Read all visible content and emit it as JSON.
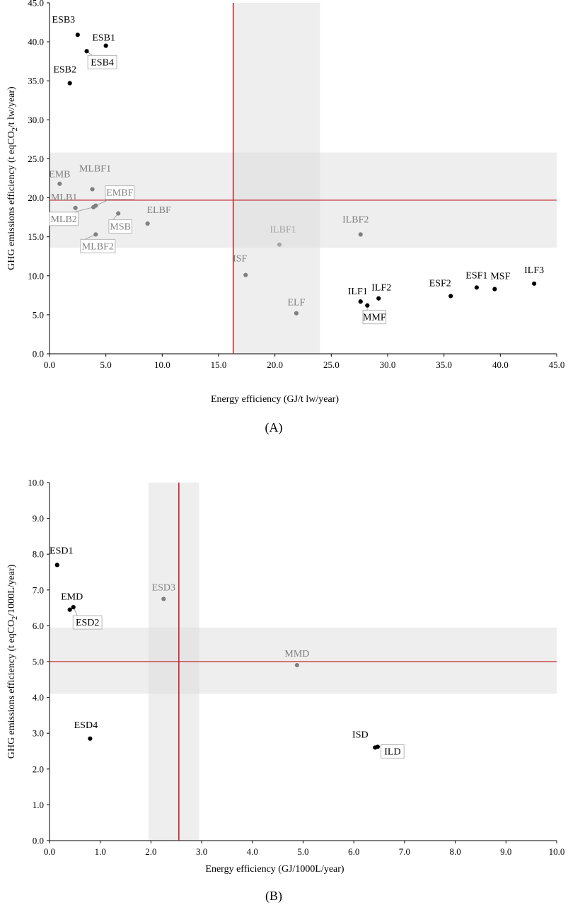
{
  "chart_data": [
    {
      "type": "scatter",
      "panel_label": "(A)",
      "xlabel": "Energy efficiency (GJ/t lw/year)",
      "ylabel_parts": [
        "GHG emissions efficiency (t eqCO",
        "2",
        "/t lw/year)"
      ],
      "xlim": [
        0,
        45
      ],
      "ylim": [
        0,
        45
      ],
      "x_ticks": [
        "0.0",
        "5.0",
        "10.0",
        "15.0",
        "20.0",
        "25.0",
        "30.0",
        "35.0",
        "40.0",
        "45.0"
      ],
      "y_ticks": [
        "0.0",
        "5.0",
        "10.0",
        "15.0",
        "20.0",
        "25.0",
        "30.0",
        "35.0",
        "40.0",
        "45.0"
      ],
      "reference_lines": {
        "x": 16.3,
        "y": 19.7
      },
      "shaded_bands": {
        "x": [
          16.3,
          24.0
        ],
        "y": [
          13.6,
          25.8
        ]
      },
      "points": [
        {
          "label": "ESB3",
          "x": 2.5,
          "y": 40.9,
          "color": "#000000"
        },
        {
          "label": "ESB1",
          "x": 5.0,
          "y": 39.5,
          "color": "#000000"
        },
        {
          "label": "ESB4",
          "x": 3.3,
          "y": 38.8,
          "color": "#000000",
          "boxed": true
        },
        {
          "label": "ESB2",
          "x": 1.8,
          "y": 34.7,
          "color": "#000000"
        },
        {
          "label": "EMB",
          "x": 0.9,
          "y": 21.8,
          "color": "#808080"
        },
        {
          "label": "MLBF1",
          "x": 3.8,
          "y": 21.1,
          "color": "#808080"
        },
        {
          "label": "MLB1",
          "x": 2.3,
          "y": 18.7,
          "color": "#808080"
        },
        {
          "label": "EMBF",
          "x": 4.1,
          "y": 19.0,
          "color": "#808080",
          "boxed": true
        },
        {
          "label": "MLB2",
          "x": 3.9,
          "y": 18.8,
          "color": "#808080",
          "boxed": true
        },
        {
          "label": "MSB",
          "x": 6.1,
          "y": 18.0,
          "color": "#808080",
          "boxed": true
        },
        {
          "label": "MLBF2",
          "x": 4.1,
          "y": 15.3,
          "color": "#808080",
          "boxed": true
        },
        {
          "label": "ELBF",
          "x": 8.7,
          "y": 16.7,
          "color": "#808080"
        },
        {
          "label": "ILBF1",
          "x": 20.4,
          "y": 14.0,
          "color": "#a6a6a6"
        },
        {
          "label": "ILBF2",
          "x": 27.6,
          "y": 15.3,
          "color": "#808080"
        },
        {
          "label": "ISF",
          "x": 17.4,
          "y": 10.1,
          "color": "#808080"
        },
        {
          "label": "ELF",
          "x": 21.9,
          "y": 5.2,
          "color": "#808080"
        },
        {
          "label": "ILF1",
          "x": 27.6,
          "y": 6.7,
          "color": "#000000"
        },
        {
          "label": "ILF2",
          "x": 29.2,
          "y": 7.1,
          "color": "#000000"
        },
        {
          "label": "MMF",
          "x": 28.2,
          "y": 6.2,
          "color": "#000000",
          "boxed": true
        },
        {
          "label": "ESF2",
          "x": 35.6,
          "y": 7.4,
          "color": "#000000"
        },
        {
          "label": "ESF1",
          "x": 37.9,
          "y": 8.5,
          "color": "#000000"
        },
        {
          "label": "MSF",
          "x": 39.5,
          "y": 8.3,
          "color": "#000000"
        },
        {
          "label": "ILF3",
          "x": 43.0,
          "y": 9.0,
          "color": "#000000"
        }
      ]
    },
    {
      "type": "scatter",
      "panel_label": "(B)",
      "xlabel": "Energy efficiency (GJ/1000L/year)",
      "ylabel_parts": [
        "GHG emissions efficiency  (t eqCO",
        "2",
        "/1000L/year)"
      ],
      "xlim": [
        0,
        10
      ],
      "ylim": [
        0,
        10
      ],
      "x_ticks": [
        "0.0",
        "1.0",
        "2.0",
        "3.0",
        "4.0",
        "5.0",
        "6.0",
        "7.0",
        "8.0",
        "9.0",
        "10.0"
      ],
      "y_ticks": [
        "0.0",
        "1.0",
        "2.0",
        "3.0",
        "4.0",
        "5.0",
        "6.0",
        "7.0",
        "8.0",
        "9.0",
        "10.0"
      ],
      "reference_lines": {
        "x": 2.55,
        "y": 5.0
      },
      "shaded_bands": {
        "x": [
          1.95,
          2.95
        ],
        "y": [
          4.1,
          5.95
        ]
      },
      "points": [
        {
          "label": "ESD1",
          "x": 0.15,
          "y": 7.7,
          "color": "#000000"
        },
        {
          "label": "EMD",
          "x": 0.4,
          "y": 6.45,
          "color": "#000000"
        },
        {
          "label": "ESD2",
          "x": 0.47,
          "y": 6.52,
          "color": "#000000",
          "boxed": true
        },
        {
          "label": "ESD3",
          "x": 2.25,
          "y": 6.75,
          "color": "#808080"
        },
        {
          "label": "MMD",
          "x": 4.88,
          "y": 4.9,
          "color": "#808080"
        },
        {
          "label": "ESD4",
          "x": 0.8,
          "y": 2.85,
          "color": "#000000"
        },
        {
          "label": "ISD",
          "x": 6.42,
          "y": 2.6,
          "color": "#000000"
        },
        {
          "label": "ILD",
          "x": 6.47,
          "y": 2.62,
          "color": "#000000",
          "boxed": true
        }
      ]
    }
  ]
}
